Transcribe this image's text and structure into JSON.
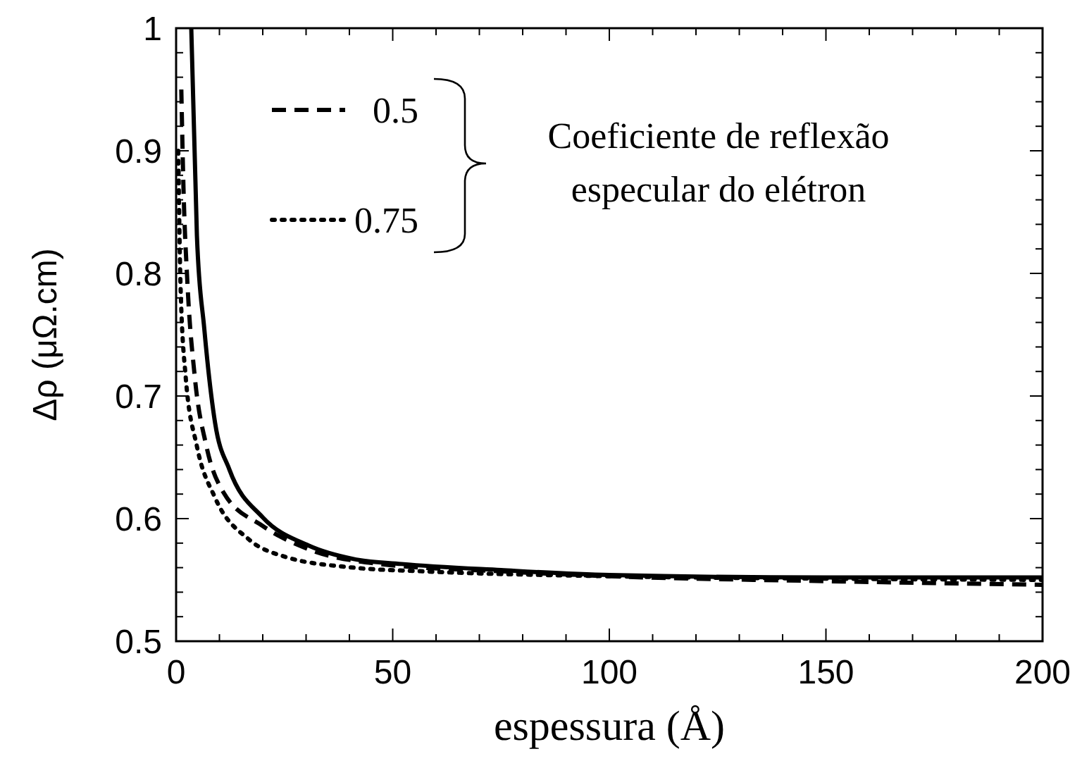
{
  "chart_data": {
    "type": "line",
    "xlabel": "espessura (Å)",
    "ylabel": "Δρ (μΩ.cm)",
    "legend_title": "Coeficiente de reflexão especular do elétron",
    "legend": "top",
    "grid": false,
    "xlim": [
      0,
      200
    ],
    "ylim": [
      0.5,
      1
    ],
    "xticks": [
      0,
      {
        "value": 10,
        "label": null
      },
      {
        "value": 20,
        "label": null
      },
      {
        "value": 30,
        "label": null
      },
      {
        "value": 40,
        "label": null
      },
      50,
      {
        "value": 60,
        "label": null
      },
      {
        "value": 70,
        "label": null
      },
      {
        "value": 80,
        "label": null
      },
      {
        "value": 90,
        "label": null
      },
      100,
      {
        "value": 110,
        "label": null
      },
      {
        "value": 120,
        "label": null
      },
      {
        "value": 130,
        "label": null
      },
      {
        "value": 140,
        "label": null
      },
      150,
      {
        "value": 160,
        "label": null
      },
      {
        "value": 170,
        "label": null
      },
      {
        "value": 180,
        "label": null
      },
      {
        "value": 190,
        "label": null
      },
      200
    ],
    "yticks": [
      0.5,
      {
        "value": 0.52,
        "label": null
      },
      {
        "value": 0.54,
        "label": null
      },
      {
        "value": 0.56,
        "label": null
      },
      {
        "value": 0.58,
        "label": null
      },
      0.6,
      {
        "value": 0.62,
        "label": null
      },
      {
        "value": 0.64,
        "label": null
      },
      {
        "value": 0.66,
        "label": null
      },
      {
        "value": 0.68,
        "label": null
      },
      0.7,
      {
        "value": 0.72,
        "label": null
      },
      {
        "value": 0.74,
        "label": null
      },
      {
        "value": 0.76,
        "label": null
      },
      {
        "value": 0.78,
        "label": null
      },
      0.8,
      {
        "value": 0.82,
        "label": null
      },
      {
        "value": 0.84,
        "label": null
      },
      {
        "value": 0.86,
        "label": null
      },
      {
        "value": 0.88,
        "label": null
      },
      0.9,
      {
        "value": 0.92,
        "label": null
      },
      {
        "value": 0.94,
        "label": null
      },
      {
        "value": 0.96,
        "label": null
      },
      {
        "value": 0.98,
        "label": null
      },
      1
    ],
    "series": [
      {
        "color": "#000000",
        "line_style": "solid",
        "x": [
          3.5,
          4.8,
          6.5,
          9,
          12.3,
          20,
          30.6,
          41,
          52,
          75,
          100,
          150,
          200
        ],
        "values": [
          1.0,
          0.831,
          0.755,
          0.678,
          0.64,
          0.601,
          0.578,
          0.567,
          0.563,
          0.558,
          0.554,
          0.552,
          0.552
        ]
      },
      {
        "name": "0.5",
        "color": "#000000",
        "line_style": "dashed",
        "x": [
          1.2,
          1.7,
          2.6,
          4.3,
          7,
          11,
          20,
          30.6,
          47,
          75,
          100,
          150,
          200
        ],
        "values": [
          0.95,
          0.87,
          0.793,
          0.716,
          0.659,
          0.621,
          0.594,
          0.575,
          0.563,
          0.557,
          0.553,
          0.549,
          0.546
        ]
      },
      {
        "name": "0.75",
        "color": "#000000",
        "line_style": "dotted",
        "x": [
          0.5,
          1,
          2.2,
          4.8,
          9,
          16.8,
          25,
          41,
          57,
          100,
          150,
          200
        ],
        "values": [
          0.9,
          0.793,
          0.716,
          0.659,
          0.617,
          0.583,
          0.569,
          0.56,
          0.557,
          0.553,
          0.551,
          0.55
        ]
      }
    ]
  }
}
